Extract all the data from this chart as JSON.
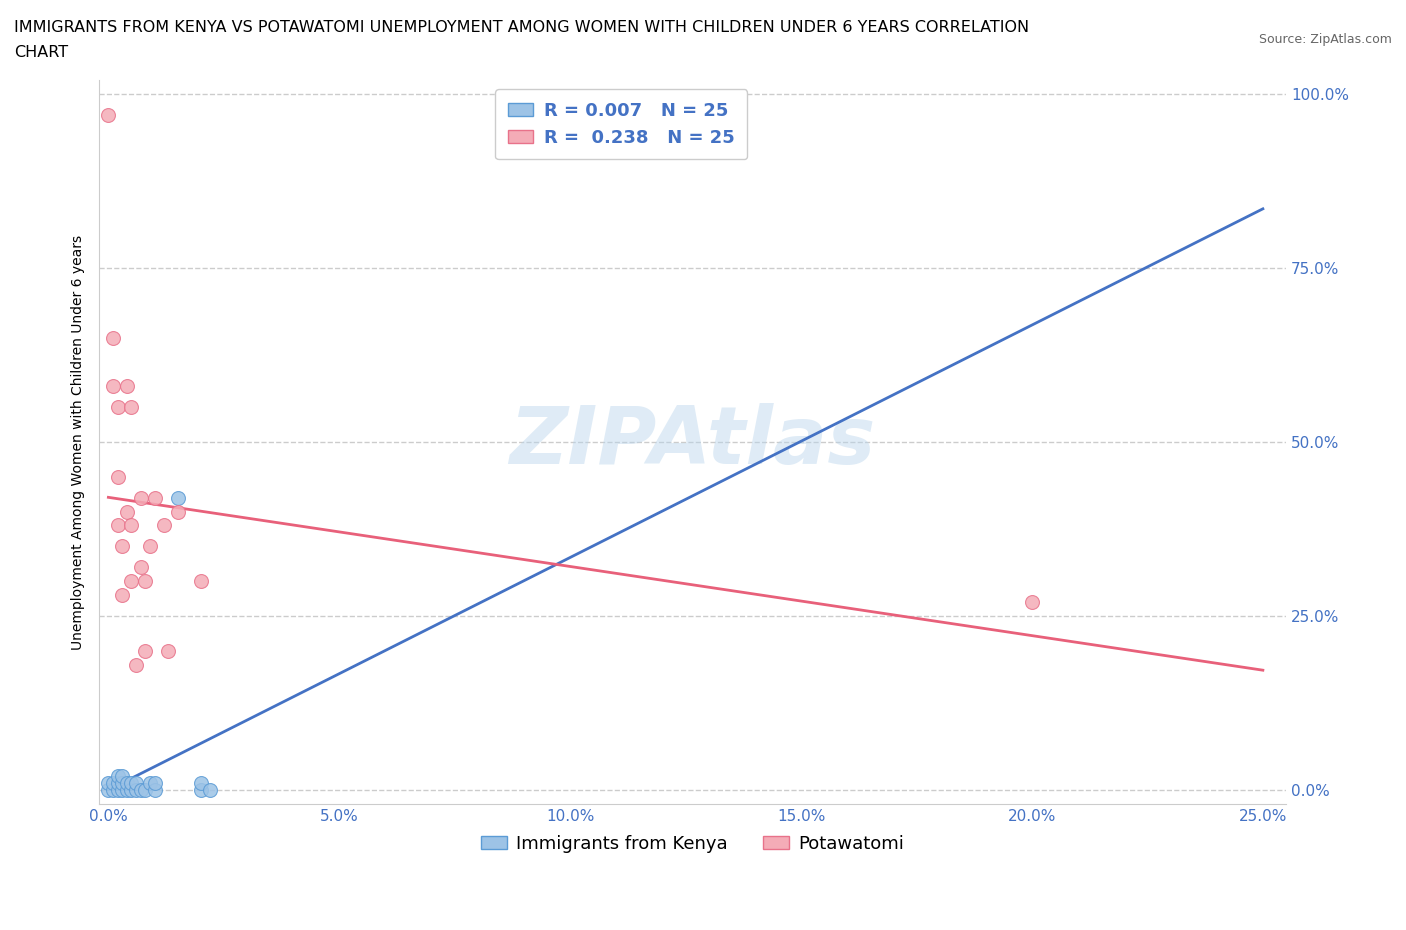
{
  "title_line1": "IMMIGRANTS FROM KENYA VS POTAWATOMI UNEMPLOYMENT AMONG WOMEN WITH CHILDREN UNDER 6 YEARS CORRELATION",
  "title_line2": "CHART",
  "source": "Source: ZipAtlas.com",
  "ylabel": "Unemployment Among Women with Children Under 6 years",
  "xlim": [
    -0.002,
    0.255
  ],
  "ylim": [
    -0.02,
    1.02
  ],
  "xtick_vals": [
    0.0,
    0.05,
    0.1,
    0.15,
    0.2,
    0.25
  ],
  "xtick_labels": [
    "0.0%",
    "5.0%",
    "10.0%",
    "15.0%",
    "20.0%",
    "25.0%"
  ],
  "ytick_vals": [
    0.0,
    0.25,
    0.5,
    0.75,
    1.0
  ],
  "ytick_labels": [
    "0.0%",
    "25.0%",
    "50.0%",
    "75.0%",
    "100.0%"
  ],
  "kenya_color": "#9DC3E6",
  "kenya_edge": "#5B9BD5",
  "potawatomi_color": "#F4ACB7",
  "potawatomi_edge": "#E8728A",
  "kenya_R": 0.007,
  "kenya_N": 25,
  "potawatomi_R": 0.238,
  "potawatomi_N": 25,
  "kenya_x": [
    0.0,
    0.0,
    0.001,
    0.001,
    0.002,
    0.002,
    0.002,
    0.003,
    0.003,
    0.003,
    0.004,
    0.004,
    0.005,
    0.005,
    0.006,
    0.006,
    0.007,
    0.008,
    0.009,
    0.01,
    0.01,
    0.015,
    0.02,
    0.02,
    0.022
  ],
  "kenya_y": [
    0.0,
    0.01,
    0.0,
    0.01,
    0.0,
    0.01,
    0.02,
    0.0,
    0.01,
    0.02,
    0.0,
    0.01,
    0.0,
    0.01,
    0.0,
    0.01,
    0.0,
    0.0,
    0.01,
    0.0,
    0.01,
    0.42,
    0.0,
    0.01,
    0.0
  ],
  "potawatomi_x": [
    0.0,
    0.001,
    0.001,
    0.002,
    0.002,
    0.002,
    0.003,
    0.003,
    0.004,
    0.004,
    0.005,
    0.005,
    0.005,
    0.006,
    0.007,
    0.007,
    0.008,
    0.008,
    0.009,
    0.01,
    0.012,
    0.013,
    0.015,
    0.02,
    0.2
  ],
  "potawatomi_y": [
    0.97,
    0.58,
    0.65,
    0.38,
    0.45,
    0.55,
    0.28,
    0.35,
    0.4,
    0.58,
    0.3,
    0.38,
    0.55,
    0.18,
    0.32,
    0.42,
    0.2,
    0.3,
    0.35,
    0.42,
    0.38,
    0.2,
    0.4,
    0.3,
    0.27
  ],
  "kenya_line_color": "#4472C4",
  "potawatomi_line_color": "#E8607A",
  "grid_color": "#CCCCCC",
  "bg_color": "#FFFFFF",
  "watermark": "ZIPAtlas",
  "watermark_color": "#B8D4EC",
  "title_fontsize": 11.5,
  "axis_label_fontsize": 10,
  "tick_fontsize": 11,
  "legend_fontsize": 13,
  "marker_size": 100,
  "R_color": "#4472C4",
  "legend_R_color": "#4472C4",
  "legend_N_color": "#4472C4"
}
